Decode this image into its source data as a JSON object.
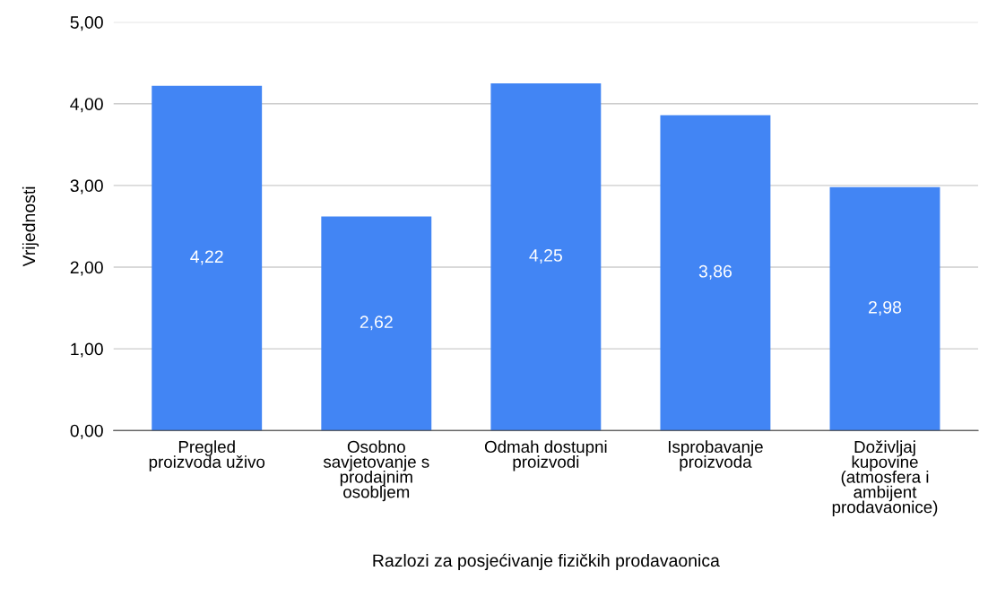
{
  "chart_data": {
    "type": "bar",
    "xlabel": "Razlozi za posjećivanje fizičkih prodavaonica",
    "ylabel": "Vrijednosti",
    "categories": [
      "Pregled\nproizvoda uživo",
      "Osobno\nsavjetovanje s\nprodajnim\nosobljem",
      "Odmah dostupni\nproizvodi",
      "Isprobavanje\nproizvoda",
      "Doživljaj\nkupovine\n(atmosfera i\nambijent\nprodavaonice)"
    ],
    "values": [
      4.22,
      2.62,
      4.25,
      3.86,
      2.98
    ],
    "value_labels": [
      "4,22",
      "2,62",
      "4,25",
      "3,86",
      "2,98"
    ],
    "color": "#4285f4",
    "ylim": [
      0,
      5
    ],
    "yticks": [
      {
        "value": 0,
        "label": "0,00"
      },
      {
        "value": 1,
        "label": "1,00"
      },
      {
        "value": 2,
        "label": "2,00"
      },
      {
        "value": 3,
        "label": "3,00"
      },
      {
        "value": 4,
        "label": "4,00"
      },
      {
        "value": 5,
        "label": "5,00"
      }
    ],
    "grid": "y"
  }
}
